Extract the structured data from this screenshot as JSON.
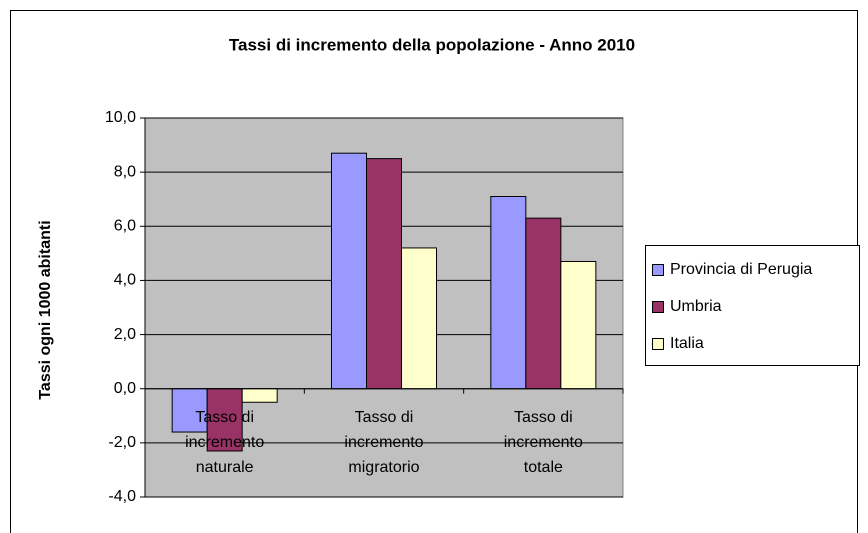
{
  "chart_data": {
    "type": "bar",
    "title": "Tassi di incremento della popolazione - Anno 2010",
    "y_label": "Tassi ogni 1000 abitanti",
    "categories": [
      "Tasso di\nincremento\nnaturale",
      "Tasso di\nincremento\nmigratorio",
      "Tasso di\nincremento\ntotale"
    ],
    "series": [
      {
        "name": "Provincia di Perugia",
        "color": "#9999ff",
        "values": [
          -1.6,
          8.7,
          7.1
        ]
      },
      {
        "name": "Umbria",
        "color": "#993366",
        "values": [
          -2.3,
          8.5,
          6.3
        ]
      },
      {
        "name": "Italia",
        "color": "#ffffcc",
        "values": [
          -0.5,
          5.2,
          4.7
        ]
      }
    ],
    "ylim": [
      -4,
      10
    ],
    "yticks": [
      {
        "value": -4,
        "label": "-4,0"
      },
      {
        "value": -2,
        "label": "-2,0"
      },
      {
        "value": 0,
        "label": "0,0"
      },
      {
        "value": 2,
        "label": "2,0"
      },
      {
        "value": 4,
        "label": "4,0"
      },
      {
        "value": 6,
        "label": "6,0"
      },
      {
        "value": 8,
        "label": "8,0"
      },
      {
        "value": 10,
        "label": "10,0"
      }
    ],
    "grid": true,
    "legend": "right"
  }
}
